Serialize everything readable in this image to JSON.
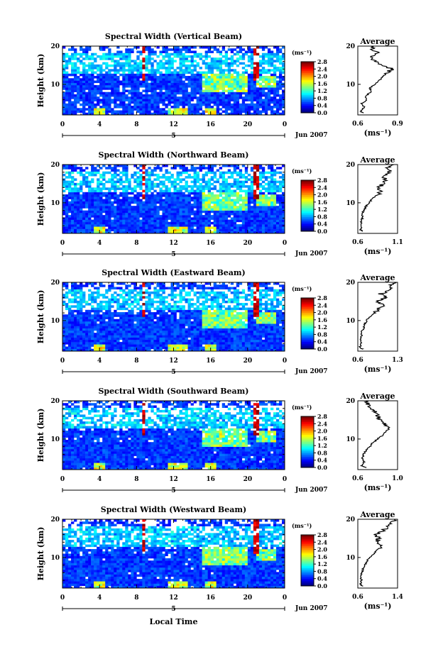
{
  "chart_data": {
    "type": "heatmap",
    "panels": [
      {
        "title": "Spectral Width (Vertical Beam)",
        "ylabel": "Height (km)",
        "ylim": [
          2,
          20
        ],
        "yticks": [
          "10",
          "20"
        ],
        "xlim": [
          0,
          24
        ],
        "xticks": [
          "0",
          "4",
          "8",
          "12",
          "16",
          "20",
          "0"
        ],
        "date_label": "5",
        "month_label": "Jun 2007",
        "colorbar": {
          "unit": "(ms⁻¹)",
          "ticks": [
            "2.8",
            "2.4",
            "2.0",
            "1.6",
            "1.2",
            "0.8",
            "0.4",
            "0.0"
          ],
          "range": [
            0.0,
            2.8
          ]
        },
        "average": {
          "title": "Average",
          "unit": "(ms⁻¹)",
          "xticks": [
            "0.6",
            "0.9"
          ],
          "xlim": [
            0.6,
            0.9
          ],
          "yticks": [
            "10",
            "20"
          ],
          "profile": [
            [
              2.5,
              0.64
            ],
            [
              3,
              0.62
            ],
            [
              4,
              0.65
            ],
            [
              5,
              0.63
            ],
            [
              6,
              0.67
            ],
            [
              7,
              0.66
            ],
            [
              8,
              0.7
            ],
            [
              9,
              0.69
            ],
            [
              10,
              0.73
            ],
            [
              11,
              0.76
            ],
            [
              12,
              0.79
            ],
            [
              13,
              0.82
            ],
            [
              14,
              0.86
            ],
            [
              15,
              0.78
            ],
            [
              16,
              0.73
            ],
            [
              17,
              0.7
            ],
            [
              18,
              0.75
            ],
            [
              19,
              0.72
            ],
            [
              20,
              0.7
            ]
          ]
        }
      },
      {
        "title": "Spectral Width (Northward Beam)",
        "ylabel": "Height (km)",
        "ylim": [
          2,
          20
        ],
        "yticks": [
          "10",
          "20"
        ],
        "xlim": [
          0,
          24
        ],
        "xticks": [
          "0",
          "4",
          "8",
          "12",
          "16",
          "20",
          "0"
        ],
        "date_label": "5",
        "month_label": "Jun 2007",
        "colorbar": {
          "unit": "(ms⁻¹)",
          "ticks": [
            "2.8",
            "2.4",
            "2.0",
            "1.6",
            "1.2",
            "0.8",
            "0.4",
            "0.0"
          ],
          "range": [
            0.0,
            2.8
          ]
        },
        "average": {
          "title": "Average",
          "unit": "(ms⁻¹)",
          "xticks": [
            "0.6",
            "1.1"
          ],
          "xlim": [
            0.6,
            1.1
          ],
          "yticks": [
            "10",
            "20"
          ],
          "profile": [
            [
              2.5,
              0.66
            ],
            [
              3,
              0.63
            ],
            [
              4,
              0.65
            ],
            [
              5,
              0.64
            ],
            [
              6,
              0.66
            ],
            [
              7,
              0.65
            ],
            [
              8,
              0.68
            ],
            [
              9,
              0.7
            ],
            [
              10,
              0.74
            ],
            [
              11,
              0.78
            ],
            [
              12,
              0.84
            ],
            [
              13,
              0.9
            ],
            [
              14,
              0.86
            ],
            [
              15,
              0.92
            ],
            [
              16,
              0.95
            ],
            [
              17,
              0.9
            ],
            [
              18,
              1.0
            ],
            [
              19,
              0.97
            ],
            [
              20,
              1.05
            ]
          ]
        }
      },
      {
        "title": "Spectral Width (Eastward Beam)",
        "ylabel": "Height (km)",
        "ylim": [
          2,
          20
        ],
        "yticks": [
          "10",
          "20"
        ],
        "xlim": [
          0,
          24
        ],
        "xticks": [
          "0",
          "4",
          "8",
          "12",
          "16",
          "20",
          "0"
        ],
        "date_label": "5",
        "month_label": "Jun 2007",
        "colorbar": {
          "unit": "(ms⁻¹)",
          "ticks": [
            "2.8",
            "2.4",
            "2.0",
            "1.6",
            "1.2",
            "0.8",
            "0.4",
            "0.0"
          ],
          "range": [
            0.0,
            2.8
          ]
        },
        "average": {
          "title": "Average",
          "unit": "(ms⁻¹)",
          "xticks": [
            "0.6",
            "1.3"
          ],
          "xlim": [
            0.6,
            1.3
          ],
          "yticks": [
            "10",
            "20"
          ],
          "profile": [
            [
              2.5,
              0.68
            ],
            [
              3,
              0.64
            ],
            [
              4,
              0.66
            ],
            [
              5,
              0.65
            ],
            [
              6,
              0.66
            ],
            [
              7,
              0.67
            ],
            [
              8,
              0.7
            ],
            [
              9,
              0.72
            ],
            [
              10,
              0.75
            ],
            [
              11,
              0.82
            ],
            [
              12,
              0.9
            ],
            [
              13,
              0.96
            ],
            [
              14,
              1.05
            ],
            [
              15,
              0.92
            ],
            [
              16,
              1.1
            ],
            [
              17,
              1.0
            ],
            [
              18,
              1.2
            ],
            [
              19,
              1.15
            ],
            [
              20,
              1.28
            ]
          ]
        }
      },
      {
        "title": "Spectral Width (Southward Beam)",
        "ylabel": "Height (km)",
        "ylim": [
          2,
          20
        ],
        "yticks": [
          "10",
          "20"
        ],
        "xlim": [
          0,
          24
        ],
        "xticks": [
          "0",
          "4",
          "8",
          "12",
          "16",
          "20",
          "0"
        ],
        "date_label": "5",
        "month_label": "Jun 2007",
        "colorbar": {
          "unit": "(ms⁻¹)",
          "ticks": [
            "2.8",
            "2.4",
            "2.0",
            "1.6",
            "1.2",
            "0.8",
            "0.4",
            "0.0"
          ],
          "range": [
            0.0,
            2.8
          ]
        },
        "average": {
          "title": "Average",
          "unit": "(ms⁻¹)",
          "xticks": [
            "0.6",
            "1.0"
          ],
          "xlim": [
            0.6,
            1.0
          ],
          "yticks": [
            "10",
            "20"
          ],
          "profile": [
            [
              2.5,
              0.68
            ],
            [
              3,
              0.64
            ],
            [
              4,
              0.66
            ],
            [
              5,
              0.64
            ],
            [
              6,
              0.66
            ],
            [
              7,
              0.68
            ],
            [
              8,
              0.72
            ],
            [
              9,
              0.75
            ],
            [
              10,
              0.8
            ],
            [
              11,
              0.85
            ],
            [
              12,
              0.88
            ],
            [
              13,
              0.92
            ],
            [
              14,
              0.86
            ],
            [
              15,
              0.82
            ],
            [
              16,
              0.8
            ],
            [
              17,
              0.77
            ],
            [
              18,
              0.74
            ],
            [
              19,
              0.7
            ],
            [
              20,
              0.68
            ]
          ]
        }
      },
      {
        "title": "Spectral Width (Westward Beam)",
        "ylabel": "Height (km)",
        "ylim": [
          2,
          20
        ],
        "yticks": [
          "10",
          "20"
        ],
        "xlim": [
          0,
          24
        ],
        "xticks": [
          "0",
          "4",
          "8",
          "12",
          "16",
          "20",
          "0"
        ],
        "date_label": "5",
        "month_label": "Jun 2007",
        "colorbar": {
          "unit": "(ms⁻¹)",
          "ticks": [
            "2.8",
            "2.4",
            "2.0",
            "1.6",
            "1.2",
            "0.8",
            "0.4",
            "0.0"
          ],
          "range": [
            0.0,
            2.8
          ]
        },
        "average": {
          "title": "Average",
          "unit": "(ms⁻¹)",
          "xticks": [
            "0.6",
            "1.4"
          ],
          "xlim": [
            0.6,
            1.4
          ],
          "yticks": [
            "10",
            "20"
          ],
          "profile": [
            [
              2.5,
              0.7
            ],
            [
              3,
              0.66
            ],
            [
              4,
              0.67
            ],
            [
              5,
              0.66
            ],
            [
              6,
              0.68
            ],
            [
              7,
              0.7
            ],
            [
              8,
              0.74
            ],
            [
              9,
              0.78
            ],
            [
              10,
              0.84
            ],
            [
              11,
              0.92
            ],
            [
              12,
              1.0
            ],
            [
              13,
              1.05
            ],
            [
              14,
              0.98
            ],
            [
              15,
              1.02
            ],
            [
              16,
              0.96
            ],
            [
              17,
              1.1
            ],
            [
              18,
              1.2
            ],
            [
              19,
              1.25
            ],
            [
              20,
              1.35
            ]
          ]
        }
      }
    ],
    "xlabel": "Local Time"
  }
}
